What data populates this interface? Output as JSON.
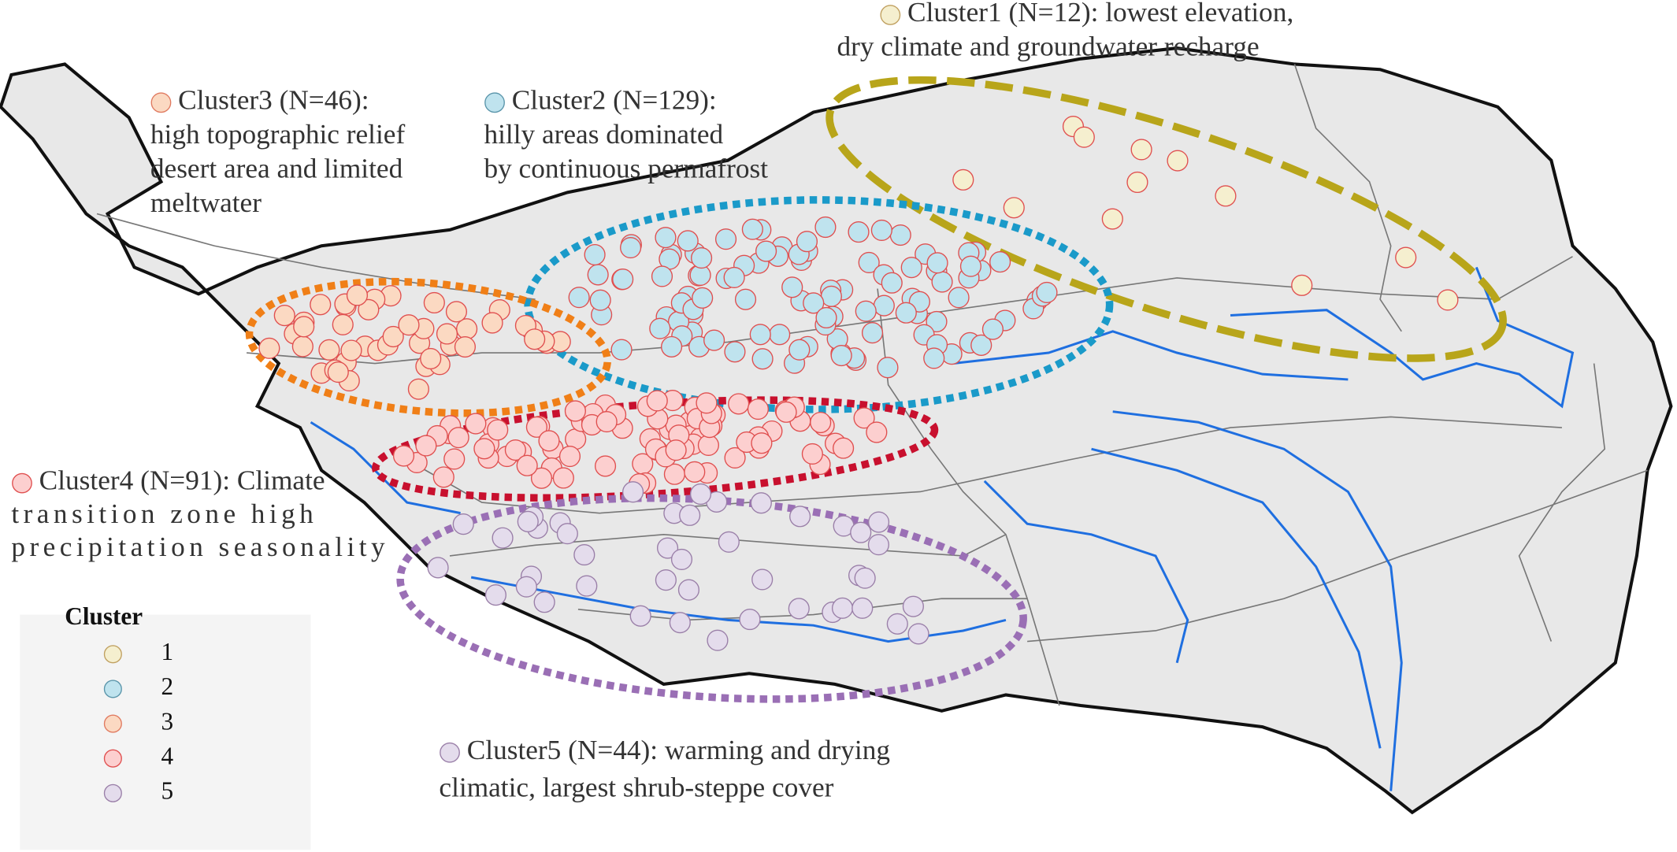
{
  "map": {
    "annotations": [
      {
        "lines": [
          "Cluster1 (N=12): lowest elevation,",
          "dry climate and groundwater recharge"
        ],
        "color": "#f5efcf"
      },
      {
        "lines": [
          "Cluster2 (N=129):",
          "hilly areas dominated",
          "by continuous permafrost"
        ],
        "color": "#bfe3ee"
      },
      {
        "lines": [
          "Cluster3  (N=46):",
          "high topographic relief",
          "desert area and limited",
          "meltwater"
        ],
        "color": "#fbd9c2"
      },
      {
        "lines": [
          "Cluster4 (N=91): Climate",
          "transition zone high",
          "precipitation seasonality"
        ],
        "color": "#fccfcf"
      },
      {
        "lines": [
          "Cluster5 (N=44): warming and drying",
          "climatic, largest shrub-steppe cover"
        ],
        "color": "#e4dcec"
      }
    ],
    "legend": {
      "title": "Cluster",
      "items": [
        {
          "label": "1",
          "color": "#f5efcf"
        },
        {
          "label": "2",
          "color": "#bfe3ee"
        },
        {
          "label": "3",
          "color": "#fbd9c2"
        },
        {
          "label": "4",
          "color": "#fccfcf"
        },
        {
          "label": "5",
          "color": "#e4dcec"
        }
      ]
    }
  }
}
